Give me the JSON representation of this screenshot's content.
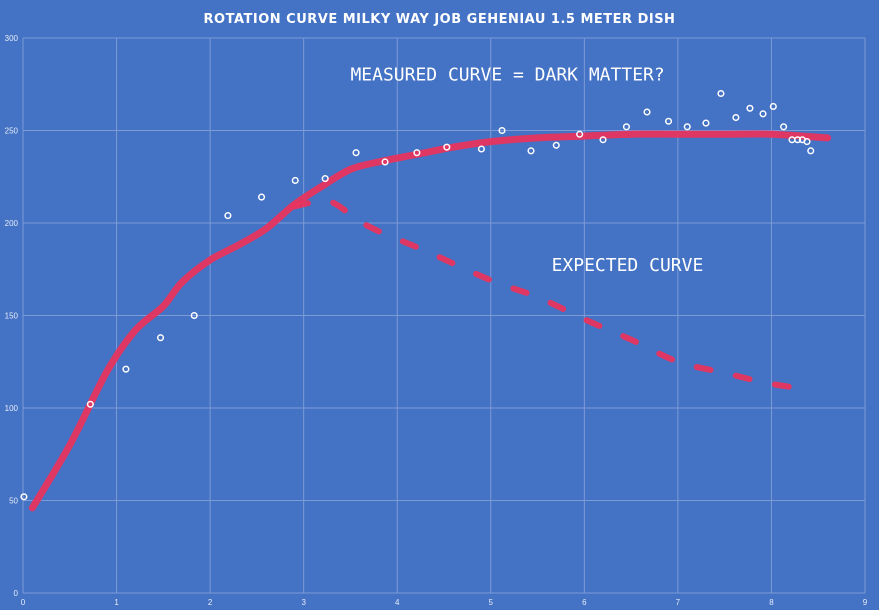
{
  "chart_data": {
    "type": "scatter",
    "title": "ROTATION CURVE MILKY WAY JOB GEHENIAU 1.5 METER DISH",
    "xlabel": "",
    "ylabel": "",
    "xlim": [
      0,
      9
    ],
    "ylim": [
      0,
      300
    ],
    "grid": true,
    "x_ticks": [
      "0",
      "1",
      "2",
      "3",
      "4",
      "5",
      "6",
      "7",
      "8",
      "9"
    ],
    "y_ticks": [
      "0",
      "50",
      "100",
      "150",
      "200",
      "250",
      "300"
    ],
    "series": [
      {
        "name": "",
        "kind": "points",
        "color": "#ffffff",
        "points": [
          [
            0.01,
            52
          ],
          [
            0.72,
            102
          ],
          [
            1.1,
            121
          ],
          [
            1.47,
            138
          ],
          [
            1.83,
            150
          ],
          [
            2.19,
            204
          ],
          [
            2.55,
            214
          ],
          [
            2.91,
            223
          ],
          [
            3.23,
            224
          ],
          [
            3.56,
            238
          ],
          [
            3.87,
            233
          ],
          [
            4.21,
            238
          ],
          [
            4.53,
            241
          ],
          [
            4.9,
            240
          ],
          [
            5.12,
            250
          ],
          [
            5.43,
            239
          ],
          [
            5.7,
            242
          ],
          [
            5.95,
            248
          ],
          [
            6.2,
            245
          ],
          [
            6.45,
            252
          ],
          [
            6.67,
            260
          ],
          [
            6.9,
            255
          ],
          [
            7.1,
            252
          ],
          [
            7.3,
            254
          ],
          [
            7.46,
            270
          ],
          [
            7.62,
            257
          ],
          [
            7.77,
            262
          ],
          [
            7.91,
            259
          ],
          [
            8.02,
            263
          ],
          [
            8.13,
            252
          ],
          [
            8.22,
            245
          ],
          [
            8.28,
            245
          ],
          [
            8.33,
            245
          ],
          [
            8.38,
            244
          ],
          [
            8.42,
            239
          ]
        ]
      },
      {
        "name": "",
        "kind": "line",
        "color": "#e8345e",
        "points": [
          [
            0.1,
            46
          ],
          [
            0.5,
            80
          ],
          [
            0.9,
            120
          ],
          [
            1.2,
            142
          ],
          [
            1.5,
            155
          ],
          [
            1.7,
            168
          ],
          [
            2.0,
            180
          ],
          [
            2.3,
            188
          ],
          [
            2.6,
            197
          ],
          [
            2.9,
            210
          ],
          [
            3.2,
            220
          ],
          [
            3.5,
            229
          ],
          [
            3.8,
            233
          ],
          [
            4.2,
            237
          ],
          [
            4.6,
            241
          ],
          [
            5.0,
            244
          ],
          [
            5.5,
            246
          ],
          [
            6.0,
            247
          ],
          [
            6.5,
            248
          ],
          [
            7.0,
            248
          ],
          [
            7.5,
            248
          ],
          [
            8.0,
            248
          ],
          [
            8.6,
            246
          ]
        ]
      },
      {
        "name": "",
        "kind": "dashed-line",
        "color": "#e8345e",
        "points": [
          [
            2.9,
            209
          ],
          [
            3.2,
            212
          ],
          [
            3.35,
            210
          ],
          [
            3.7,
            198
          ],
          [
            4.3,
            185
          ],
          [
            5.0,
            169
          ],
          [
            5.5,
            160
          ],
          [
            6.0,
            148
          ],
          [
            6.5,
            137
          ],
          [
            7.0,
            125
          ],
          [
            7.5,
            119
          ],
          [
            7.9,
            114
          ],
          [
            8.25,
            111
          ]
        ]
      }
    ],
    "annotations": [
      {
        "text": "MEASURED CURVE = DARK MATTER?",
        "x": 3.5,
        "y": 277
      },
      {
        "text": "EXPECTED CURVE",
        "x": 5.65,
        "y": 174
      }
    ]
  }
}
